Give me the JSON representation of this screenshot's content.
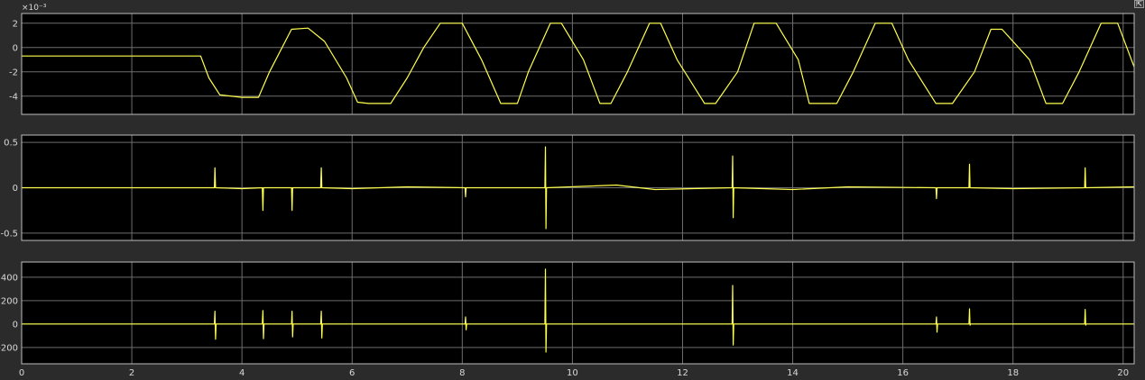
{
  "colors": {
    "figure_background": "#2b2b2b",
    "axes_background": "#000000",
    "grid": "#6e6e6e",
    "axes_border": "#bdbdbd",
    "signal": "#ffff4d",
    "tick_text": "#d9d9d9"
  },
  "icons": {
    "undock": "undock-arrow-icon"
  },
  "chart_data": [
    {
      "type": "line",
      "title": "",
      "xlabel": "",
      "ylabel": "",
      "xlim": [
        0,
        20.2
      ],
      "ylim": [
        -5.5,
        2.8
      ],
      "y_exponent_label": "×10⁻³",
      "grid": true,
      "xticks": [
        0,
        2,
        4,
        6,
        8,
        10,
        12,
        14,
        16,
        18,
        20
      ],
      "yticks": [
        -4,
        -2,
        0,
        2
      ],
      "ytick_labels": [
        "-4",
        "-2",
        "0",
        "2"
      ],
      "series": [
        {
          "x": [
            0,
            3.25,
            3.4,
            3.6,
            4.0,
            4.3,
            4.5,
            4.9,
            5.2,
            5.5,
            5.9,
            6.1,
            6.3,
            6.7,
            7.0,
            7.3,
            7.6,
            8.0,
            8.35,
            8.7,
            9.0,
            9.2,
            9.6,
            9.8,
            10.2,
            10.5,
            10.7,
            11.0,
            11.4,
            11.6,
            11.9,
            12.4,
            12.6,
            13.0,
            13.3,
            13.7,
            14.1,
            14.3,
            14.8,
            15.1,
            15.5,
            15.8,
            16.1,
            16.6,
            16.9,
            17.3,
            17.6,
            17.8,
            18.3,
            18.6,
            18.9,
            19.2,
            19.6,
            19.9,
            20.2
          ],
          "y": [
            -0.7,
            -0.7,
            -2.5,
            -3.9,
            -4.1,
            -4.1,
            -2.0,
            1.5,
            1.6,
            0.5,
            -2.5,
            -4.5,
            -4.6,
            -4.6,
            -2.5,
            0.0,
            2.0,
            2.0,
            -1.0,
            -4.6,
            -4.6,
            -2.0,
            2.0,
            2.0,
            -1.0,
            -4.6,
            -4.6,
            -2.0,
            2.0,
            2.0,
            -1.0,
            -4.6,
            -4.6,
            -2.0,
            2.0,
            2.0,
            -1.0,
            -4.6,
            -4.6,
            -2.0,
            2.0,
            2.0,
            -1.0,
            -4.6,
            -4.6,
            -2.0,
            1.5,
            1.5,
            -1.0,
            -4.6,
            -4.6,
            -2.0,
            2.0,
            2.0,
            -1.6
          ]
        }
      ]
    },
    {
      "type": "line",
      "title": "",
      "xlabel": "",
      "ylabel": "",
      "xlim": [
        0,
        20.2
      ],
      "ylim": [
        -0.58,
        0.58
      ],
      "grid": true,
      "xticks": [
        0,
        2,
        4,
        6,
        8,
        10,
        12,
        14,
        16,
        18,
        20
      ],
      "yticks": [
        -0.5,
        0,
        0.5
      ],
      "ytick_labels": [
        "-0.5",
        "0",
        "0.5"
      ],
      "series": [
        {
          "x": [
            0,
            3.25,
            3.5,
            3.51,
            3.52,
            4.0,
            4.37,
            4.38,
            4.39,
            4.9,
            4.91,
            4.92,
            5.43,
            5.44,
            5.45,
            6.0,
            7.0,
            8.05,
            8.06,
            8.07,
            9.5,
            9.51,
            9.52,
            9.53,
            10.8,
            11.5,
            12.9,
            12.91,
            12.92,
            12.93,
            14.0,
            15.0,
            16.6,
            16.61,
            16.62,
            17.2,
            17.21,
            17.22,
            18.0,
            19.3,
            19.31,
            19.32,
            20.2
          ],
          "y": [
            0,
            0,
            0,
            0.22,
            0,
            -0.01,
            0,
            -0.25,
            0,
            0,
            -0.25,
            0,
            0,
            0.22,
            0,
            -0.01,
            0.01,
            0,
            -0.1,
            0,
            0,
            0.45,
            -0.45,
            0,
            0.03,
            -0.02,
            0,
            0.35,
            -0.33,
            0,
            -0.02,
            0.01,
            0,
            -0.12,
            0,
            0,
            0.26,
            0,
            -0.01,
            0,
            0.22,
            0,
            0.01
          ]
        }
      ]
    },
    {
      "type": "line",
      "title": "",
      "xlabel": "",
      "ylabel": "",
      "xlim": [
        0,
        20.2
      ],
      "ylim": [
        -340,
        530
      ],
      "grid": true,
      "xticks": [
        0,
        2,
        4,
        6,
        8,
        10,
        12,
        14,
        16,
        18,
        20
      ],
      "xtick_labels": [
        "0",
        "2",
        "4",
        "6",
        "8",
        "10",
        "12",
        "14",
        "16",
        "18",
        "20"
      ],
      "yticks": [
        -200,
        0,
        200,
        400
      ],
      "ytick_labels": [
        "-200",
        "0",
        "200",
        "400"
      ],
      "series": [
        {
          "x": [
            0,
            3.25,
            3.5,
            3.51,
            3.52,
            3.53,
            4.37,
            4.38,
            4.39,
            4.4,
            4.9,
            4.91,
            4.92,
            4.93,
            5.43,
            5.44,
            5.45,
            5.46,
            8.05,
            8.06,
            8.07,
            8.08,
            9.5,
            9.51,
            9.52,
            9.53,
            12.9,
            12.91,
            12.92,
            12.93,
            16.6,
            16.61,
            16.62,
            16.63,
            17.2,
            17.21,
            17.22,
            17.23,
            19.3,
            19.31,
            19.32,
            19.33,
            20.2
          ],
          "y": [
            0,
            0,
            0,
            110,
            -130,
            0,
            0,
            115,
            -125,
            0,
            0,
            110,
            -110,
            0,
            0,
            110,
            -120,
            0,
            0,
            60,
            -50,
            0,
            0,
            470,
            -240,
            0,
            0,
            330,
            -180,
            0,
            0,
            60,
            -70,
            0,
            0,
            130,
            -10,
            0,
            0,
            125,
            -10,
            0,
            0
          ]
        }
      ]
    }
  ]
}
